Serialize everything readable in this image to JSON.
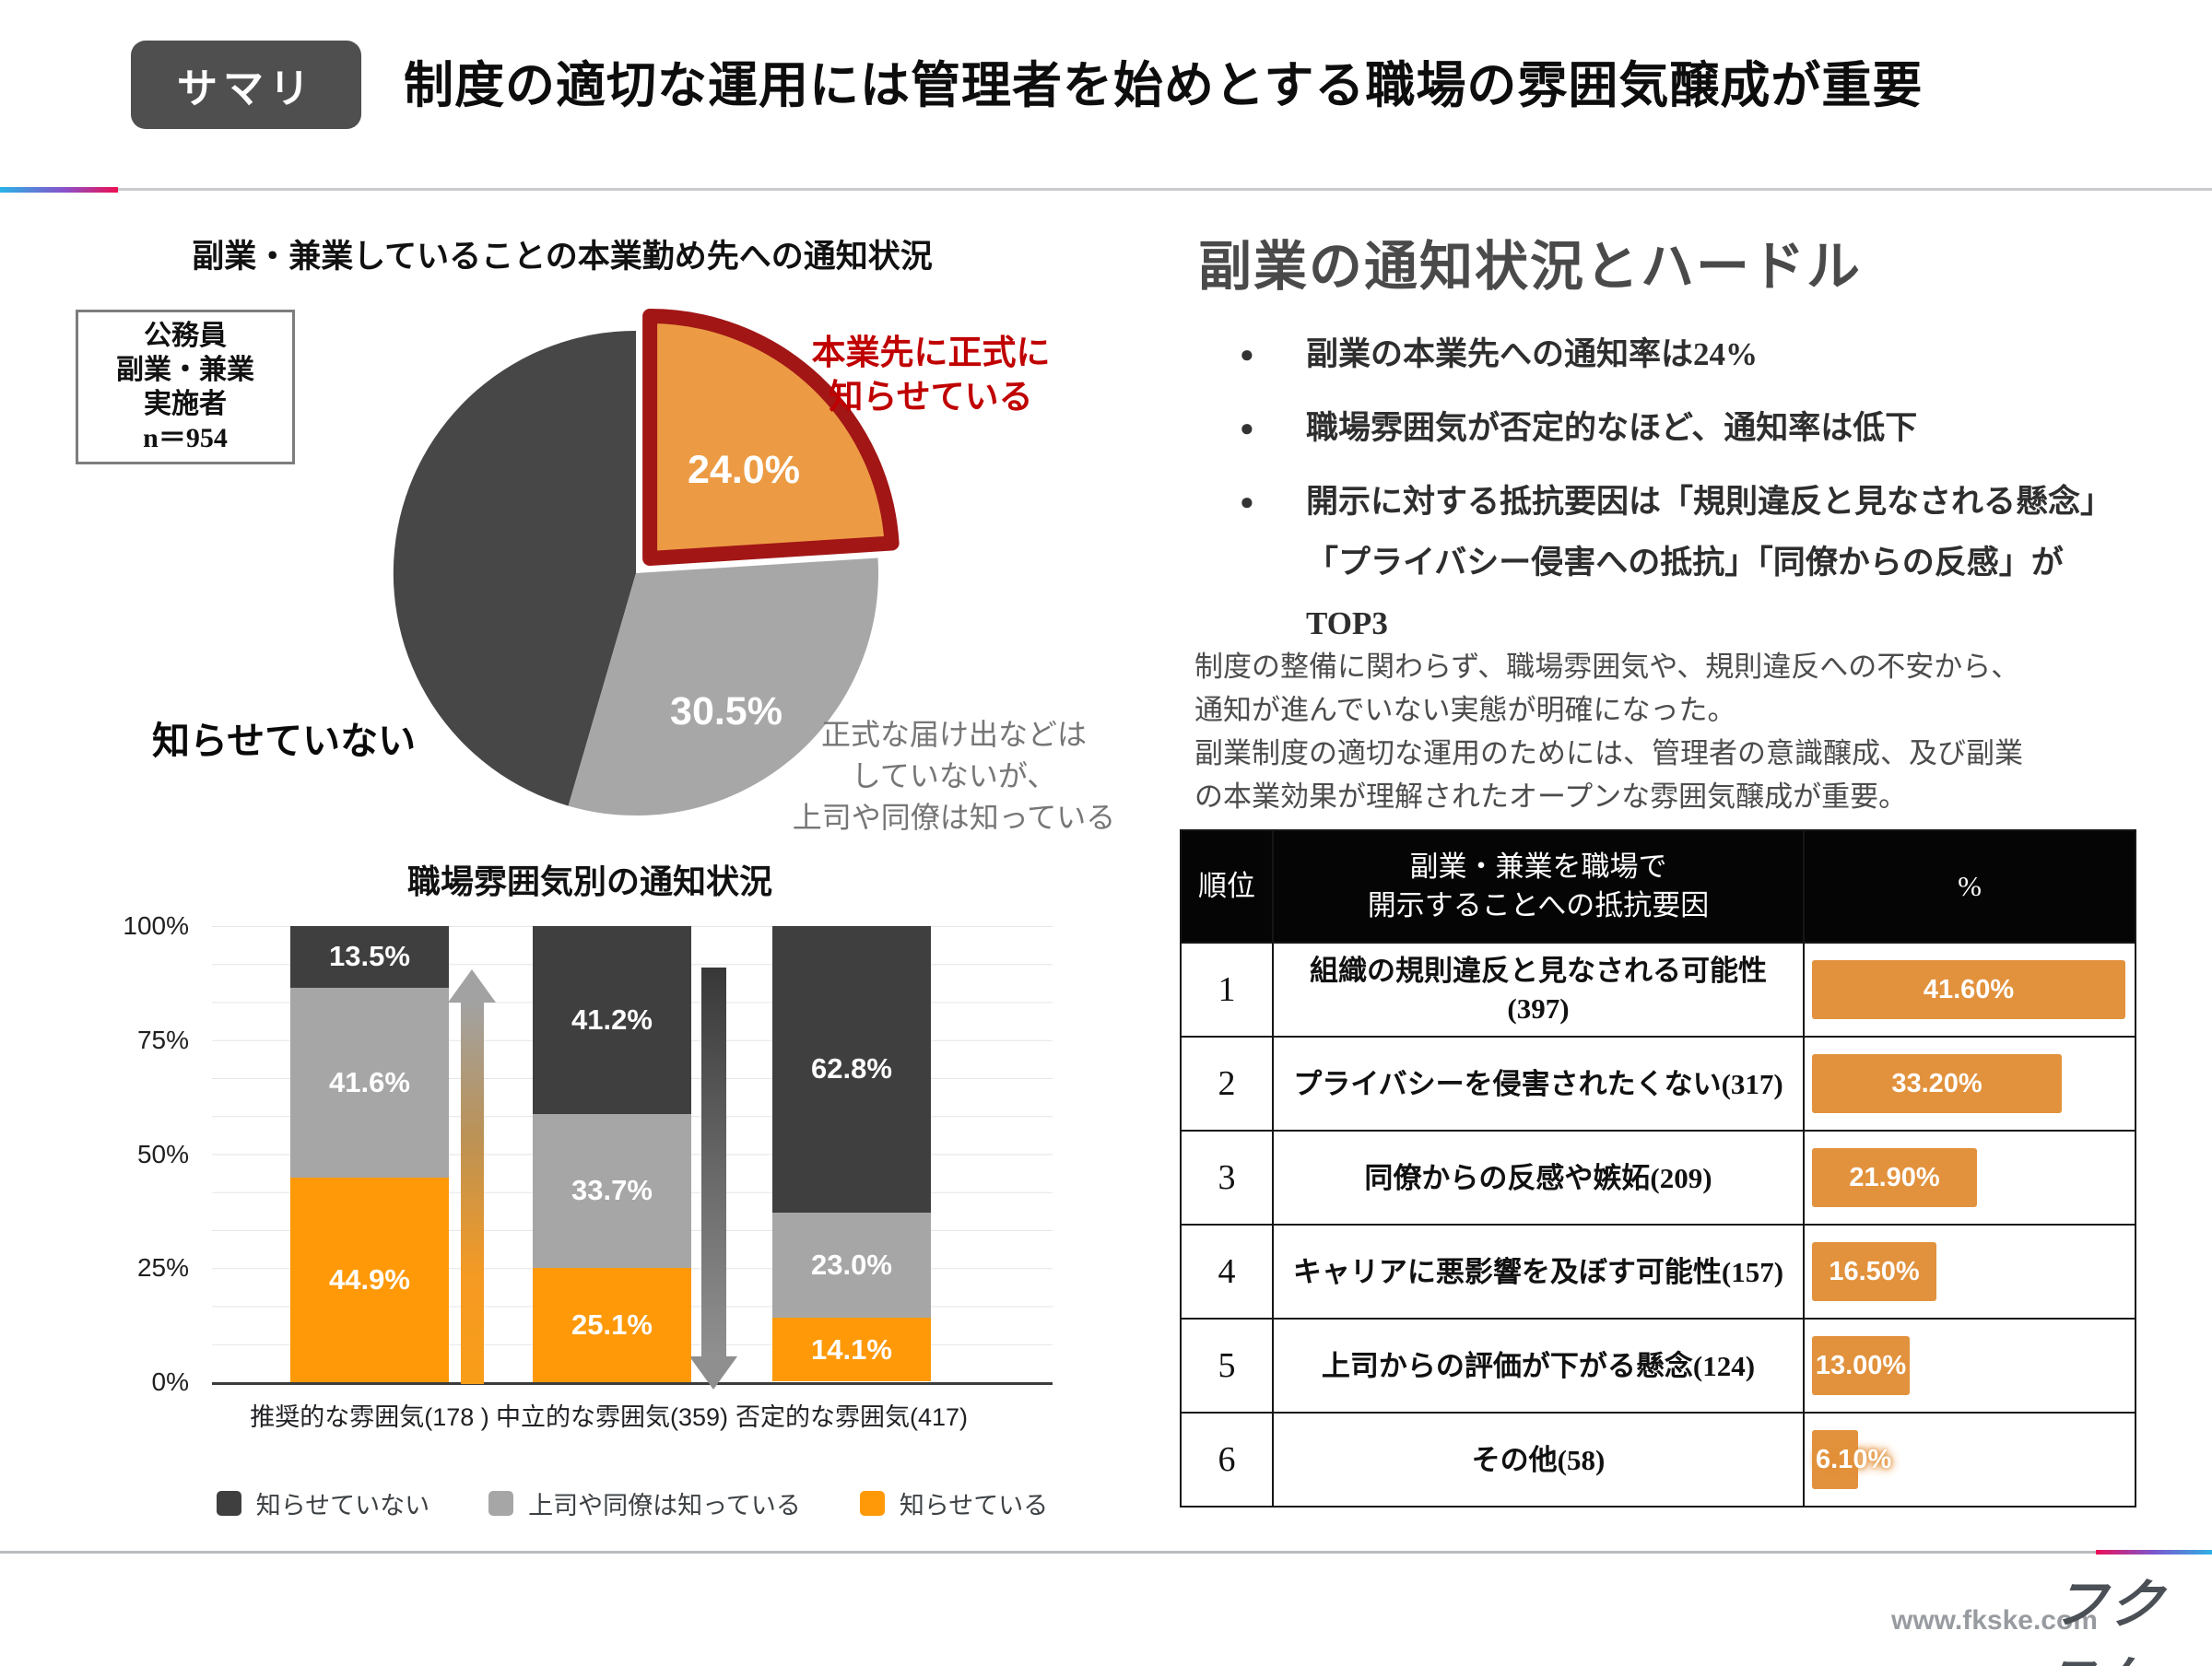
{
  "header": {
    "badge": "サマリ",
    "title": "制度の適切な運用には管理者を始めとする職場の雰囲気醸成が重要"
  },
  "pie": {
    "sample_box_lines": [
      "公務員",
      "副業・兼業",
      "実施者",
      "n＝954"
    ],
    "callout_positive_lines": [
      "本業先に正式に",
      "知らせている"
    ],
    "callout_informal_lines": [
      "正式な届け出などは",
      "していないが、",
      "上司や同僚は知っている"
    ],
    "label_not_told": "知らせていない"
  },
  "right": {
    "heading": "副業の通知状況とハードル",
    "bullets": [
      {
        "lines": [
          "副業の本業先への通知率は24%"
        ]
      },
      {
        "lines": [
          "職場雰囲気が否定的なほど、通知率は低下"
        ]
      },
      {
        "lines": [
          "開示に対する抵抗要因は「規則違反と見なされる懸念」",
          "「プライバシー侵害への抵抗」「同僚からの反感」が",
          "TOP3"
        ]
      }
    ],
    "paragraph_lines": [
      "制度の整備に関わらず、職場雰囲気や、規則違反への不安から、",
      "通知が進んでいない実態が明確になった。",
      "副業制度の適切な運用のためには、管理者の意識醸成、及び副業",
      "の本業効果が理解されたオープンな雰囲気醸成が重要。"
    ],
    "table": {
      "headers": {
        "rank": "順位",
        "factor_lines": [
          "副業・兼業を職場で",
          "開示することへの抵抗要因"
        ],
        "pct": "%"
      },
      "rows": [
        {
          "rank": "1",
          "factor_lines": [
            "組織の規則違反と見なされる可能性",
            "(397)"
          ],
          "pct_label": "41.60%",
          "pct_value": 41.6
        },
        {
          "rank": "2",
          "factor_lines": [
            "プライバシーを侵害されたくない(317)"
          ],
          "pct_label": "33.20%",
          "pct_value": 33.2
        },
        {
          "rank": "3",
          "factor_lines": [
            "同僚からの反感や嫉妬(209)"
          ],
          "pct_label": "21.90%",
          "pct_value": 21.9
        },
        {
          "rank": "4",
          "factor_lines": [
            "キャリアに悪影響を及ぼす可能性(157)"
          ],
          "pct_label": "16.50%",
          "pct_value": 16.5
        },
        {
          "rank": "5",
          "factor_lines": [
            "上司からの評価が下がる懸念(124)"
          ],
          "pct_label": "13.00%",
          "pct_value": 13.0
        },
        {
          "rank": "6",
          "factor_lines": [
            "その他(58)"
          ],
          "pct_label": "6.10%",
          "pct_value": 6.1
        }
      ]
    }
  },
  "footer": {
    "url": "www.fkske.com",
    "logo": "フクスケ"
  },
  "colors": {
    "accent_orange": "#ff9908",
    "pie_orange": "#ec9b44",
    "table_orange": "#e2923d",
    "dark": "#3f3f3f",
    "gray": "#a6a6a6",
    "ring_red": "#a21616",
    "text_red": "#c00000"
  },
  "chart_data": [
    {
      "type": "pie",
      "title": "副業・兼業していることの本業勤め先への通知状況",
      "n_label": "n＝954",
      "start": "top, clockwise",
      "slices": [
        {
          "label": "本業先に正式に知らせている",
          "value": 24.0,
          "color": "#ec9b44",
          "exploded": true,
          "ring": "#a21616"
        },
        {
          "label": "正式な届け出などはしていないが、上司や同僚は知っている",
          "value": 30.5,
          "color": "#a7a7a7"
        },
        {
          "label": "知らせていない",
          "value": 45.5,
          "color": "#474747"
        }
      ]
    },
    {
      "type": "bar",
      "stacked": true,
      "title": "職場雰囲気別の通知状況",
      "categories": [
        "推奨的な雰囲気(178 )",
        "中立的な雰囲気(359)",
        "否定的な雰囲気(417)"
      ],
      "series": [
        {
          "name": "知らせていない",
          "color": "#3f3f3f",
          "values": [
            13.5,
            41.2,
            62.8
          ]
        },
        {
          "name": "上司や同僚は知っている",
          "color": "#a6a6a6",
          "values": [
            41.6,
            33.7,
            23.0
          ]
        },
        {
          "name": "知らせている",
          "color": "#ff9908",
          "values": [
            44.9,
            25.1,
            14.1
          ]
        }
      ],
      "ylim": [
        0,
        100
      ],
      "yticks": [
        "100%",
        "75%",
        "50%",
        "25%",
        "0%"
      ],
      "grid": true,
      "legend_position": "bottom",
      "annotations": [
        {
          "type": "arrow-up",
          "between": [
            "推奨的な雰囲気(178 )",
            "中立的な雰囲気(359)"
          ],
          "style": "orange-to-gray gradient"
        },
        {
          "type": "arrow-down",
          "between": [
            "中立的な雰囲気(359)",
            "否定的な雰囲気(417)"
          ],
          "style": "dark-to-gray gradient"
        }
      ]
    },
    {
      "type": "bar",
      "orientation": "horizontal",
      "title": "副業・兼業を職場で開示することへの抵抗要因",
      "categories": [
        "組織の規則違反と見なされる可能性(397)",
        "プライバシーを侵害されたくない(317)",
        "同僚からの反感や嫉妬(209)",
        "キャリアに悪影響を及ぼす可能性(157)",
        "上司からの評価が下がる懸念(124)",
        "その他(58)"
      ],
      "values": [
        41.6,
        33.2,
        21.9,
        16.5,
        13.0,
        6.1
      ],
      "labels": [
        "41.60%",
        "33.20%",
        "21.90%",
        "16.50%",
        "13.00%",
        "6.10%"
      ]
    }
  ]
}
